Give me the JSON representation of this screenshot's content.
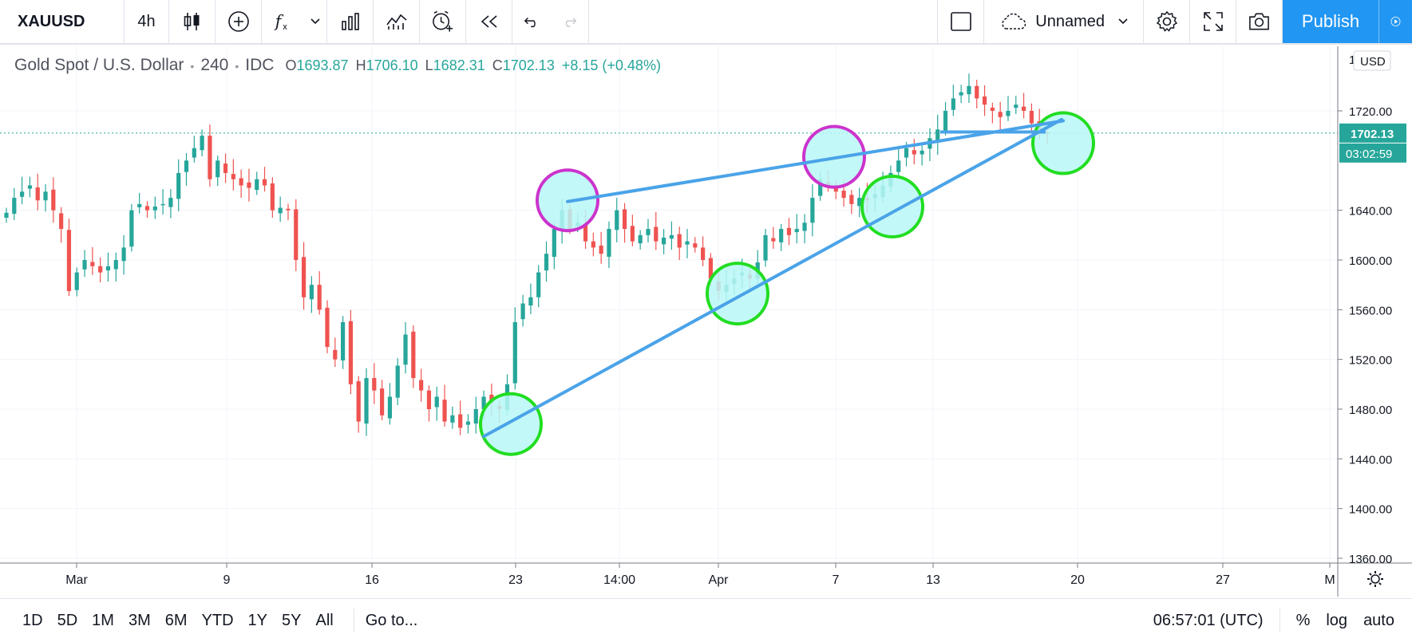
{
  "toolbar": {
    "symbol": "XAUUSD",
    "interval": "4h",
    "layout_name": "Unnamed",
    "publish_label": "Publish",
    "icons": [
      "candles-icon",
      "add-compare-icon",
      "indicators-icon",
      "chevron-down-icon",
      "financials-icon",
      "templates-icon",
      "alert-icon",
      "replay-icon",
      "undo-icon",
      "redo-icon",
      "rectangle-icon",
      "cloud-icon",
      "chevron-down-icon",
      "settings-icon",
      "fullscreen-icon",
      "camera-icon",
      "play-icon"
    ]
  },
  "legend": {
    "name": "Gold Spot / U.S. Dollar",
    "interval": "240",
    "source": "IDC",
    "o_key": "O",
    "o": "1693.87",
    "h_key": "H",
    "h": "1706.10",
    "l_key": "L",
    "l": "1682.31",
    "c_key": "C",
    "c": "1702.13",
    "change": "+8.15 (+0.48%)"
  },
  "chart_data": {
    "type": "candlestick",
    "symbol": "XAUUSD",
    "currency": "USD",
    "y_ticks": [
      1360,
      1400,
      1440,
      1480,
      1520,
      1560,
      1600,
      1640,
      1720
    ],
    "ylim": [
      1352,
      1775
    ],
    "x_ticks": [
      "Mar",
      "9",
      "16",
      "23",
      "14:00",
      "Apr",
      "7",
      "13",
      "20",
      "27",
      "M"
    ],
    "last_price": "1702.13",
    "countdown": "03:02:59",
    "colors": {
      "up": "#26a69a",
      "down": "#ef5350",
      "trendline": "#4aa3e8",
      "support_circle": "#22dd22",
      "resistance_circle": "#cc33cc",
      "circle_fill": "#b8f7f7"
    },
    "closes": [
      1638,
      1650,
      1655,
      1660,
      1648,
      1655,
      1640,
      1625,
      1575,
      1590,
      1600,
      1595,
      1590,
      1595,
      1600,
      1610,
      1640,
      1645,
      1640,
      1643,
      1645,
      1650,
      1670,
      1680,
      1690,
      1700,
      1665,
      1680,
      1670,
      1665,
      1660,
      1658,
      1665,
      1660,
      1640,
      1642,
      1640,
      1600,
      1570,
      1580,
      1560,
      1530,
      1520,
      1550,
      1500,
      1470,
      1505,
      1495,
      1475,
      1490,
      1515,
      1540,
      1505,
      1495,
      1480,
      1490,
      1470,
      1475,
      1465,
      1470,
      1480,
      1490,
      1485,
      1480,
      1500,
      1550,
      1565,
      1570,
      1590,
      1605,
      1625,
      1640,
      1625,
      1630,
      1615,
      1610,
      1605,
      1625,
      1640,
      1625,
      1615,
      1620,
      1625,
      1615,
      1618,
      1620,
      1610,
      1615,
      1610,
      1600,
      1585,
      1575,
      1580,
      1585,
      1590,
      1585,
      1598,
      1620,
      1615,
      1625,
      1620,
      1625,
      1630,
      1650,
      1665,
      1660,
      1655,
      1650,
      1645,
      1650,
      1648,
      1653,
      1660,
      1670,
      1680,
      1690,
      1685,
      1688,
      1698,
      1705,
      1720,
      1730,
      1735,
      1740,
      1730,
      1725,
      1720,
      1715,
      1720,
      1725,
      1720,
      1710,
      1705,
      1702
    ],
    "annotations": {
      "support_trendline": {
        "from": {
          "x": "Mar 20",
          "price": 1458
        },
        "to": {
          "x": "Apr 17",
          "price": 1713
        }
      },
      "resistance_trendline": {
        "from": {
          "x": "Mar 27",
          "price": 1647
        },
        "to": {
          "x": "Apr 18",
          "price": 1712
        }
      },
      "support_circles": [
        {
          "x": "Mar 23",
          "price": 1468
        },
        {
          "x": "Apr 2",
          "price": 1573
        },
        {
          "x": "Apr 10",
          "price": 1643
        },
        {
          "x": "Apr 18",
          "price": 1694
        }
      ],
      "resistance_circles": [
        {
          "x": "Mar 27",
          "price": 1648
        },
        {
          "x": "Apr 7",
          "price": 1683
        }
      ]
    }
  },
  "bottombar": {
    "ranges": [
      "1D",
      "5D",
      "1M",
      "3M",
      "6M",
      "YTD",
      "1Y",
      "5Y",
      "All"
    ],
    "goto_label": "Go to...",
    "time": "06:57:01 (UTC)",
    "opt_percent": "%",
    "opt_log": "log",
    "opt_auto": "auto"
  }
}
